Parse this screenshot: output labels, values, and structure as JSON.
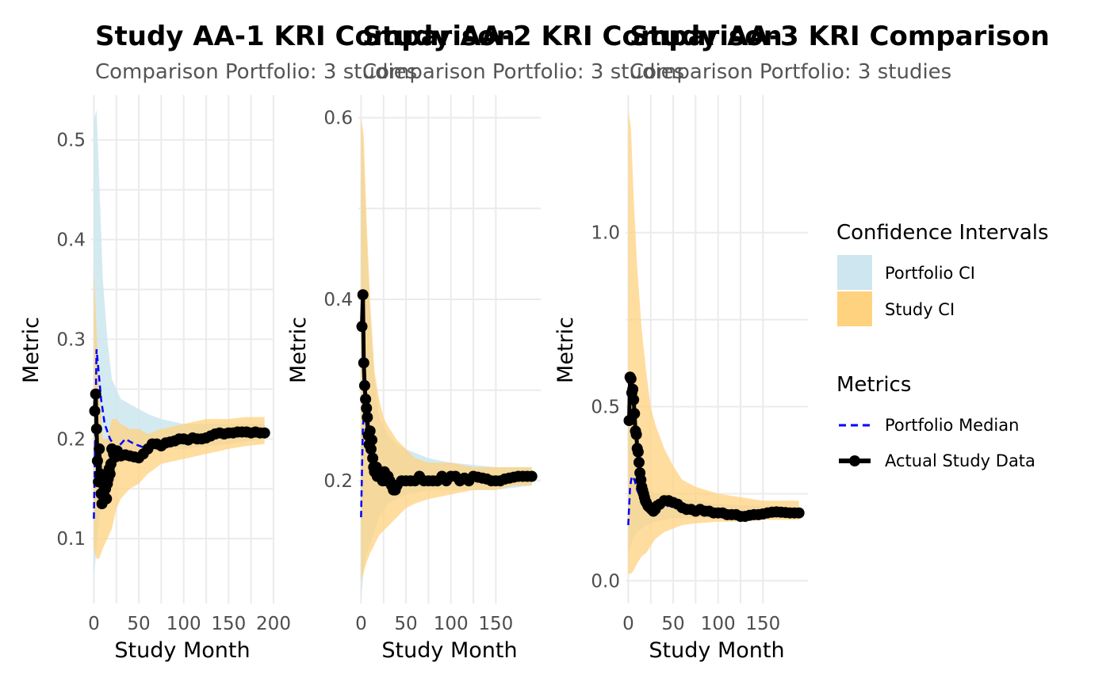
{
  "chart_data": [
    {
      "type": "line",
      "title": "Study AA-1 KRI Comparison",
      "subtitle": "Comparison Portfolio: 3 studies",
      "xlabel": "Study Month",
      "ylabel": "Metric",
      "xlim": [
        -3,
        200
      ],
      "ylim": [
        0.035,
        0.545
      ],
      "xticks": [
        0,
        50,
        100,
        150,
        200
      ],
      "xtick_labels": [
        "0",
        "50",
        "100",
        "150",
        "200"
      ],
      "yticks": [
        0.1,
        0.2,
        0.3,
        0.4,
        0.5
      ],
      "ytick_labels": [
        "0.1",
        "0.2",
        "0.3",
        "0.4",
        "0.5"
      ],
      "portfolio_ci": {
        "x": [
          0,
          3,
          6,
          10,
          15,
          20,
          30,
          40,
          50,
          60,
          75,
          100,
          150,
          190
        ],
        "lower": [
          0.06,
          0.09,
          0.12,
          0.14,
          0.16,
          0.17,
          0.175,
          0.18,
          0.185,
          0.185,
          0.19,
          0.19,
          0.195,
          0.2
        ],
        "upper": [
          0.52,
          0.53,
          0.46,
          0.36,
          0.3,
          0.26,
          0.24,
          0.235,
          0.23,
          0.225,
          0.22,
          0.215,
          0.215,
          0.215
        ]
      },
      "study_ci": {
        "x": [
          0,
          3,
          6,
          10,
          15,
          20,
          25,
          30,
          40,
          50,
          60,
          75,
          100,
          125,
          150,
          170,
          190
        ],
        "lower": [
          0.09,
          0.08,
          0.08,
          0.09,
          0.1,
          0.11,
          0.13,
          0.14,
          0.15,
          0.155,
          0.165,
          0.175,
          0.18,
          0.185,
          0.19,
          0.193,
          0.195
        ],
        "upper": [
          0.37,
          0.31,
          0.25,
          0.2,
          0.2,
          0.22,
          0.22,
          0.215,
          0.21,
          0.21,
          0.205,
          0.21,
          0.215,
          0.22,
          0.22,
          0.222,
          0.222
        ]
      },
      "portfolio_median": {
        "x": [
          0,
          3,
          5,
          8,
          12,
          18,
          25,
          35,
          45,
          60,
          80,
          100,
          130,
          160,
          190
        ],
        "y": [
          0.12,
          0.29,
          0.27,
          0.24,
          0.215,
          0.2,
          0.19,
          0.2,
          0.195,
          0.19,
          0.195,
          0.2,
          0.203,
          0.205,
          0.207
        ]
      },
      "actual_study_data": {
        "x": [
          1,
          2,
          3,
          4,
          5,
          6,
          7,
          8,
          9,
          10,
          11,
          12,
          13,
          14,
          15,
          16,
          17,
          18,
          19,
          20,
          22,
          24,
          26,
          28,
          30,
          35,
          40,
          45,
          50,
          55,
          60,
          65,
          70,
          75,
          80,
          85,
          90,
          95,
          100,
          105,
          110,
          115,
          120,
          125,
          130,
          135,
          140,
          145,
          150,
          155,
          160,
          165,
          170,
          175,
          180,
          185,
          190
        ],
        "y": [
          0.228,
          0.245,
          0.21,
          0.178,
          0.157,
          0.19,
          0.165,
          0.145,
          0.135,
          0.16,
          0.145,
          0.14,
          0.15,
          0.14,
          0.155,
          0.16,
          0.17,
          0.165,
          0.175,
          0.19,
          0.185,
          0.182,
          0.188,
          0.185,
          0.183,
          0.184,
          0.183,
          0.182,
          0.181,
          0.185,
          0.19,
          0.195,
          0.195,
          0.193,
          0.196,
          0.197,
          0.198,
          0.2,
          0.2,
          0.199,
          0.201,
          0.2,
          0.2,
          0.201,
          0.203,
          0.205,
          0.206,
          0.205,
          0.206,
          0.206,
          0.207,
          0.207,
          0.207,
          0.206,
          0.207,
          0.206,
          0.206
        ]
      }
    },
    {
      "type": "line",
      "title": "Study AA-2 KRI Comparison",
      "subtitle": "Comparison Portfolio: 3 studies",
      "xlabel": "Study Month",
      "ylabel": "Metric",
      "xlim": [
        -3,
        200
      ],
      "ylim": [
        0.065,
        0.625
      ],
      "xticks": [
        0,
        50,
        100,
        150
      ],
      "xtick_labels": [
        "0",
        "50",
        "100",
        "150"
      ],
      "yticks": [
        0.2,
        0.4,
        0.6
      ],
      "ytick_labels": [
        "0.2",
        "0.4",
        "0.6"
      ],
      "portfolio_ci": {
        "x": [
          0,
          3,
          6,
          10,
          15,
          20,
          30,
          40,
          50,
          75,
          100,
          150,
          190
        ],
        "lower": [
          0.07,
          0.1,
          0.12,
          0.13,
          0.145,
          0.16,
          0.175,
          0.18,
          0.185,
          0.19,
          0.19,
          0.19,
          0.195
        ],
        "upper": [
          0.6,
          0.55,
          0.47,
          0.38,
          0.31,
          0.27,
          0.25,
          0.24,
          0.235,
          0.225,
          0.22,
          0.215,
          0.215
        ]
      },
      "study_ci": {
        "x": [
          0,
          3,
          6,
          10,
          15,
          20,
          25,
          30,
          40,
          50,
          60,
          75,
          100,
          125,
          150,
          170,
          190
        ],
        "lower": [
          0.09,
          0.1,
          0.11,
          0.12,
          0.13,
          0.14,
          0.145,
          0.15,
          0.16,
          0.17,
          0.175,
          0.18,
          0.185,
          0.19,
          0.19,
          0.195,
          0.195
        ],
        "upper": [
          0.6,
          0.58,
          0.49,
          0.4,
          0.32,
          0.29,
          0.27,
          0.26,
          0.245,
          0.235,
          0.225,
          0.22,
          0.22,
          0.215,
          0.215,
          0.215,
          0.215
        ]
      },
      "portfolio_median": {
        "x": [
          0,
          2,
          4,
          6,
          10,
          15,
          20,
          30,
          40,
          50,
          75,
          100,
          130,
          160,
          190
        ],
        "y": [
          0.16,
          0.26,
          0.28,
          0.26,
          0.24,
          0.225,
          0.21,
          0.2,
          0.2,
          0.2,
          0.2,
          0.202,
          0.202,
          0.203,
          0.204
        ]
      },
      "actual_study_data": {
        "x": [
          1,
          2,
          3,
          4,
          5,
          6,
          7,
          8,
          9,
          10,
          11,
          12,
          13,
          14,
          15,
          16,
          17,
          18,
          19,
          20,
          22,
          24,
          26,
          28,
          30,
          32,
          34,
          36,
          38,
          40,
          45,
          50,
          55,
          60,
          65,
          70,
          75,
          80,
          85,
          90,
          95,
          100,
          105,
          110,
          115,
          120,
          125,
          130,
          135,
          140,
          145,
          150,
          155,
          160,
          165,
          170,
          175,
          180,
          185,
          190
        ],
        "y": [
          0.37,
          0.405,
          0.33,
          0.305,
          0.29,
          0.28,
          0.27,
          0.25,
          0.24,
          0.255,
          0.235,
          0.245,
          0.225,
          0.215,
          0.21,
          0.21,
          0.215,
          0.205,
          0.21,
          0.205,
          0.205,
          0.2,
          0.21,
          0.2,
          0.205,
          0.2,
          0.195,
          0.19,
          0.19,
          0.195,
          0.2,
          0.2,
          0.2,
          0.2,
          0.205,
          0.2,
          0.2,
          0.2,
          0.2,
          0.205,
          0.2,
          0.205,
          0.205,
          0.2,
          0.203,
          0.2,
          0.205,
          0.204,
          0.203,
          0.202,
          0.2,
          0.2,
          0.2,
          0.202,
          0.203,
          0.204,
          0.205,
          0.205,
          0.205,
          0.205
        ]
      }
    },
    {
      "type": "line",
      "title": "Study AA-3 KRI Comparison",
      "subtitle": "Comparison Portfolio: 3 studies",
      "xlabel": "Study Month",
      "ylabel": "Metric",
      "xlim": [
        -3,
        200
      ],
      "ylim": [
        -0.065,
        1.395
      ],
      "xticks": [
        0,
        50,
        100,
        150
      ],
      "xtick_labels": [
        "0",
        "50",
        "100",
        "150"
      ],
      "yticks": [
        0.0,
        0.5,
        1.0
      ],
      "ytick_labels": [
        "0.0",
        "0.5",
        "1.0"
      ],
      "portfolio_ci": {
        "x": [
          0,
          5,
          10,
          20,
          30,
          50,
          75,
          100,
          150,
          190
        ],
        "lower": [
          0.08,
          0.12,
          0.14,
          0.16,
          0.17,
          0.18,
          0.18,
          0.18,
          0.18,
          0.18
        ],
        "upper": [
          0.45,
          0.4,
          0.33,
          0.27,
          0.25,
          0.24,
          0.23,
          0.22,
          0.215,
          0.21
        ]
      },
      "study_ci": {
        "x": [
          0,
          3,
          6,
          10,
          15,
          20,
          25,
          30,
          40,
          50,
          60,
          75,
          100,
          125,
          150,
          170,
          190
        ],
        "lower": [
          0.02,
          0.02,
          0.03,
          0.05,
          0.07,
          0.08,
          0.1,
          0.12,
          0.14,
          0.15,
          0.16,
          0.165,
          0.17,
          0.17,
          0.175,
          0.175,
          0.175
        ],
        "upper": [
          1.35,
          1.3,
          1.1,
          0.9,
          0.72,
          0.6,
          0.5,
          0.45,
          0.38,
          0.33,
          0.29,
          0.27,
          0.25,
          0.24,
          0.23,
          0.23,
          0.23
        ]
      },
      "portfolio_median": {
        "x": [
          0,
          2,
          4,
          7,
          10,
          15,
          20,
          30,
          40,
          50,
          75,
          100,
          130,
          160,
          190
        ],
        "y": [
          0.16,
          0.27,
          0.3,
          0.29,
          0.26,
          0.23,
          0.215,
          0.21,
          0.215,
          0.215,
          0.205,
          0.2,
          0.195,
          0.2,
          0.2
        ]
      },
      "actual_study_data": {
        "x": [
          1,
          2,
          3,
          4,
          5,
          6,
          7,
          8,
          9,
          10,
          11,
          12,
          13,
          14,
          15,
          16,
          17,
          18,
          19,
          20,
          22,
          24,
          26,
          28,
          30,
          32,
          35,
          40,
          45,
          50,
          55,
          60,
          65,
          70,
          75,
          80,
          85,
          90,
          95,
          100,
          105,
          110,
          115,
          120,
          125,
          130,
          135,
          140,
          145,
          150,
          155,
          160,
          165,
          170,
          175,
          180,
          185,
          190
        ],
        "y": [
          0.46,
          0.585,
          0.58,
          0.54,
          0.55,
          0.52,
          0.48,
          0.43,
          0.42,
          0.38,
          0.37,
          0.34,
          0.31,
          0.29,
          0.27,
          0.26,
          0.25,
          0.24,
          0.23,
          0.225,
          0.215,
          0.21,
          0.205,
          0.2,
          0.205,
          0.215,
          0.22,
          0.23,
          0.23,
          0.225,
          0.22,
          0.21,
          0.205,
          0.205,
          0.2,
          0.205,
          0.2,
          0.2,
          0.195,
          0.195,
          0.195,
          0.19,
          0.19,
          0.19,
          0.185,
          0.185,
          0.188,
          0.19,
          0.19,
          0.192,
          0.195,
          0.197,
          0.198,
          0.197,
          0.196,
          0.195,
          0.195,
          0.195
        ]
      }
    }
  ],
  "legend": {
    "ci_title": "Confidence Intervals",
    "ci_items": [
      {
        "label": "Portfolio CI",
        "color": "#cde6ef"
      },
      {
        "label": "Study CI",
        "color": "#ffd27f"
      }
    ],
    "metrics_title": "Metrics",
    "metric_items": [
      {
        "label": "Portfolio Median",
        "color": "#0000ff",
        "style": "dashed"
      },
      {
        "label": "Actual Study Data",
        "color": "#000000",
        "style": "line-point"
      }
    ]
  },
  "colors": {
    "portfolio_ci": "#cde6ef",
    "study_ci": "#ffd27f",
    "portfolio_median": "#0000ff",
    "actual_study_data": "#000000"
  }
}
